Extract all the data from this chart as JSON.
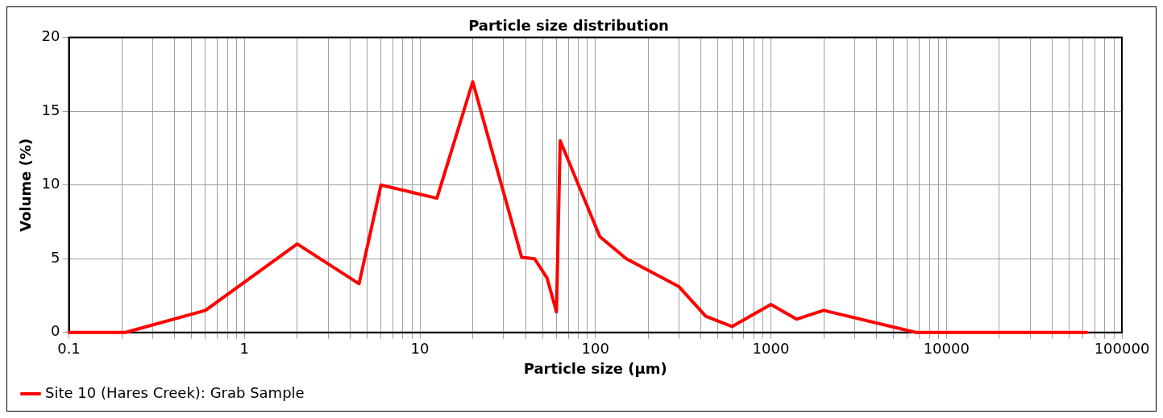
{
  "chart_data": {
    "type": "line",
    "title": "Particle size distribution",
    "xlabel": "Particle size (µm)",
    "ylabel": "Volume (%)",
    "x": [
      0.1,
      0.21,
      0.6,
      2,
      4.5,
      6,
      12.5,
      20,
      38,
      45,
      53,
      60,
      63,
      106,
      150,
      300,
      425,
      600,
      1000,
      1400,
      2000,
      6700,
      63000
    ],
    "series": [
      {
        "name": "Site 10 (Hares Creek): Grab Sample",
        "color": "#ff0000",
        "values": [
          0,
          0,
          1.5,
          6,
          3.3,
          10,
          9.1,
          17,
          5.1,
          5,
          3.7,
          1.4,
          13,
          6.5,
          5,
          3.1,
          1.1,
          0.4,
          1.9,
          0.9,
          1.5,
          0,
          0
        ]
      }
    ],
    "log": "x",
    "xlim": [
      0.1,
      100000
    ],
    "xticks": [
      0.1,
      {
        "value": 0.2,
        "label": null
      },
      {
        "value": 0.3,
        "label": null
      },
      {
        "value": 0.4,
        "label": null
      },
      {
        "value": 0.5,
        "label": null
      },
      {
        "value": 0.6,
        "label": null
      },
      {
        "value": 0.7,
        "label": null
      },
      {
        "value": 0.8,
        "label": null
      },
      {
        "value": 0.9,
        "label": null
      },
      1,
      {
        "value": 2,
        "label": null
      },
      {
        "value": 3,
        "label": null
      },
      {
        "value": 4,
        "label": null
      },
      {
        "value": 5,
        "label": null
      },
      {
        "value": 6,
        "label": null
      },
      {
        "value": 7,
        "label": null
      },
      {
        "value": 8,
        "label": null
      },
      {
        "value": 9,
        "label": null
      },
      10,
      {
        "value": 20,
        "label": null
      },
      {
        "value": 30,
        "label": null
      },
      {
        "value": 40,
        "label": null
      },
      {
        "value": 50,
        "label": null
      },
      {
        "value": 60,
        "label": null
      },
      {
        "value": 70,
        "label": null
      },
      {
        "value": 80,
        "label": null
      },
      {
        "value": 90,
        "label": null
      },
      100,
      {
        "value": 200,
        "label": null
      },
      {
        "value": 300,
        "label": null
      },
      {
        "value": 400,
        "label": null
      },
      {
        "value": 500,
        "label": null
      },
      {
        "value": 600,
        "label": null
      },
      {
        "value": 700,
        "label": null
      },
      {
        "value": 800,
        "label": null
      },
      {
        "value": 900,
        "label": null
      },
      1000,
      {
        "value": 2000,
        "label": null
      },
      {
        "value": 3000,
        "label": null
      },
      {
        "value": 4000,
        "label": null
      },
      {
        "value": 5000,
        "label": null
      },
      {
        "value": 6000,
        "label": null
      },
      {
        "value": 7000,
        "label": null
      },
      {
        "value": 8000,
        "label": null
      },
      {
        "value": 9000,
        "label": null
      },
      10000,
      {
        "value": 20000,
        "label": null
      },
      {
        "value": 30000,
        "label": null
      },
      {
        "value": 40000,
        "label": null
      },
      {
        "value": 50000,
        "label": null
      },
      {
        "value": 60000,
        "label": null
      },
      {
        "value": 70000,
        "label": null
      },
      {
        "value": 80000,
        "label": null
      },
      {
        "value": 90000,
        "label": null
      },
      100000
    ],
    "ylim": [
      0,
      20
    ],
    "yticks": [
      0,
      5,
      10,
      15,
      20
    ],
    "grid": true,
    "legend": "bottom left",
    "marker": "none",
    "line_style": "solid"
  }
}
